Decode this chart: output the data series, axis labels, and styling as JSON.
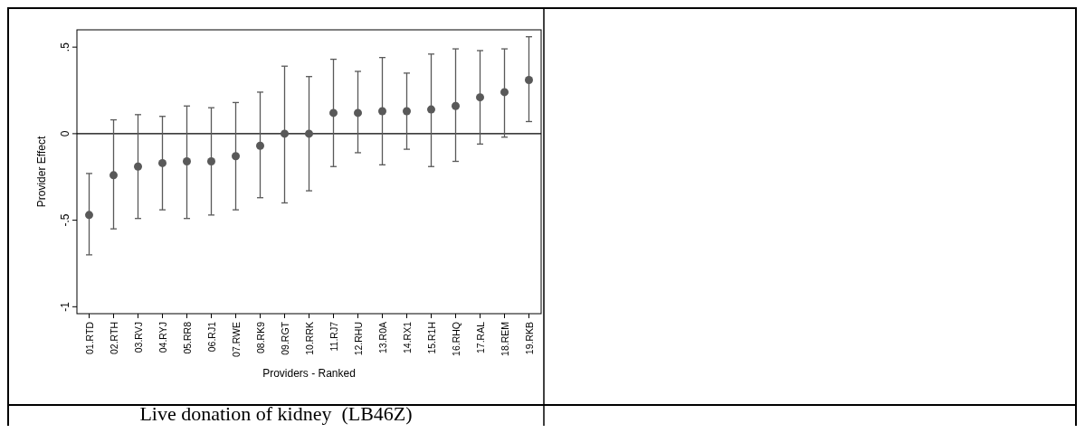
{
  "chart_data": {
    "type": "scatter",
    "xlabel": "Providers - Ranked",
    "ylabel": "Provider Effect",
    "categories": [
      "01.RTD",
      "02.RTH",
      "03.RVJ",
      "04.RYJ",
      "05.RR8",
      "06.RJ1",
      "07.RWE",
      "08.RK9",
      "09.RGT",
      "10.RRK",
      "11.RJ7",
      "12.RHU",
      "13.R0A",
      "14.RX1",
      "15.R1H",
      "16.RHQ",
      "17.RAL",
      "18.REM",
      "19.RKB"
    ],
    "series": [
      {
        "color": "#595959",
        "values": [
          -0.47,
          -0.24,
          -0.19,
          -0.17,
          -0.16,
          -0.16,
          -0.13,
          -0.07,
          0,
          0,
          0.12,
          0.12,
          0.13,
          0.13,
          0.14,
          0.16,
          0.21,
          0.24,
          0.31
        ],
        "errors": [
          [
            -0.7,
            -0.23
          ],
          [
            -0.55,
            0.08
          ],
          [
            -0.49,
            0.11
          ],
          [
            -0.44,
            0.1
          ],
          [
            -0.49,
            0.16
          ],
          [
            -0.47,
            0.15
          ],
          [
            -0.44,
            0.18
          ],
          [
            -0.37,
            0.24
          ],
          [
            -0.4,
            0.39
          ],
          [
            -0.33,
            0.33
          ],
          [
            -0.19,
            0.43
          ],
          [
            -0.11,
            0.36
          ],
          [
            -0.18,
            0.44
          ],
          [
            -0.09,
            0.35
          ],
          [
            -0.19,
            0.46
          ],
          [
            -0.16,
            0.49
          ],
          [
            -0.06,
            0.48
          ],
          [
            -0.02,
            0.49
          ],
          [
            0.07,
            0.56
          ]
        ]
      }
    ],
    "ylim": [
      -1.04,
      0.6
    ],
    "yticks": [
      {
        "value": -1,
        "label": "-1"
      },
      {
        "value": -0.5,
        "label": "-.5"
      },
      {
        "value": 0,
        "label": "0"
      },
      {
        "value": 0.5,
        "label": ".5"
      }
    ],
    "marker": "circle",
    "grid": false,
    "ref_lines": [
      {
        "axis": "y",
        "value": 0,
        "color": "#000000"
      }
    ],
    "annotations": [
      "Live donation of kidney  (LB46Z)"
    ]
  }
}
